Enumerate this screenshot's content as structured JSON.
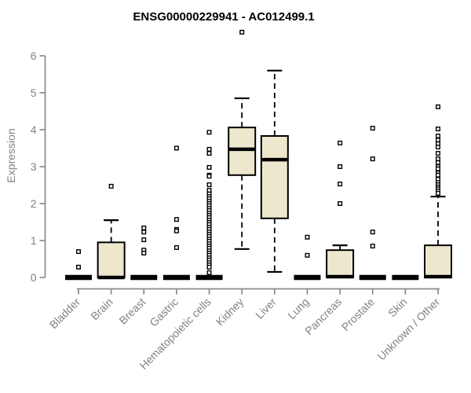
{
  "chart_data": {
    "type": "boxplot",
    "title": "ENSG00000229941 - AC012499.1",
    "ylabel": "Expression",
    "xlabel": "",
    "ylim": [
      0,
      6.8
    ],
    "yticks": [
      0,
      1,
      2,
      3,
      4,
      5,
      6
    ],
    "grid": false,
    "legend": "none",
    "box_fill": "#EDE8CD",
    "box_stroke": "#000000",
    "axis_color": "#8a8a8a",
    "text_color": "#828282",
    "categories": [
      "Bladder",
      "Brain",
      "Breast",
      "Gastric",
      "Hematopoietic cells",
      "Kidney",
      "Liver",
      "Lung",
      "Pancreas",
      "Prostate",
      "Skin",
      "Unknown / Other"
    ],
    "boxes": [
      {
        "category": "Bladder",
        "low": 0,
        "q1": 0,
        "median": 0,
        "q3": 0,
        "high": 0,
        "outliers": [
          0.7,
          0.28
        ]
      },
      {
        "category": "Brain",
        "low": 0,
        "q1": 0,
        "median": 0,
        "q3": 0.95,
        "high": 1.55,
        "outliers": [
          2.47
        ]
      },
      {
        "category": "Breast",
        "low": 0,
        "q1": 0,
        "median": 0,
        "q3": 0,
        "high": 0,
        "outliers": [
          1.34,
          1.23,
          1.02,
          0.74,
          0.66
        ]
      },
      {
        "category": "Gastric",
        "low": 0,
        "q1": 0,
        "median": 0,
        "q3": 0,
        "high": 0,
        "outliers": [
          3.5,
          1.57,
          1.3,
          1.26,
          0.81
        ]
      },
      {
        "category": "Hematopoietic cells",
        "low": 0,
        "q1": 0,
        "median": 0,
        "q3": 0,
        "high": 0,
        "outliers": [
          3.93,
          3.47,
          3.36,
          2.98,
          2.77,
          2.74,
          2.51,
          2.36,
          2.26,
          2.19,
          2.13,
          2.06,
          2.0,
          1.94,
          1.87,
          1.81,
          1.74,
          1.68,
          1.62,
          1.55,
          1.49,
          1.43,
          1.36,
          1.3,
          1.23,
          1.17,
          1.11,
          1.04,
          0.98,
          0.91,
          0.85,
          0.79,
          0.72,
          0.66,
          0.6,
          0.53,
          0.47,
          0.4,
          0.34,
          0.28,
          0.13
        ]
      },
      {
        "category": "Kidney",
        "low": 0.77,
        "q1": 2.77,
        "median": 3.47,
        "q3": 4.06,
        "high": 4.85,
        "outliers": [
          6.64
        ]
      },
      {
        "category": "Liver",
        "low": 0.15,
        "q1": 1.6,
        "median": 3.19,
        "q3": 3.83,
        "high": 5.6,
        "outliers": []
      },
      {
        "category": "Lung",
        "low": 0,
        "q1": 0,
        "median": 0,
        "q3": 0,
        "high": 0,
        "outliers": [
          1.09,
          0.6
        ]
      },
      {
        "category": "Pancreas",
        "low": 0,
        "q1": 0,
        "median": 0.02,
        "q3": 0.74,
        "high": 0.87,
        "outliers": [
          3.64,
          3.0,
          2.53,
          2.0
        ]
      },
      {
        "category": "Prostate",
        "low": 0,
        "q1": 0,
        "median": 0,
        "q3": 0,
        "high": 0,
        "outliers": [
          4.04,
          3.21,
          1.23,
          0.85
        ]
      },
      {
        "category": "Skin",
        "low": 0,
        "q1": 0,
        "median": 0,
        "q3": 0,
        "high": 0,
        "outliers": []
      },
      {
        "category": "Unknown / Other",
        "low": 0,
        "q1": 0,
        "median": 0.02,
        "q3": 0.87,
        "high": 2.19,
        "outliers": [
          4.62,
          4.02,
          3.83,
          3.72,
          3.62,
          3.53,
          3.36,
          3.21,
          3.11,
          3.0,
          2.94,
          2.83,
          2.77,
          2.66,
          2.57,
          2.51,
          2.45,
          2.4,
          2.34,
          2.28
        ]
      }
    ]
  }
}
